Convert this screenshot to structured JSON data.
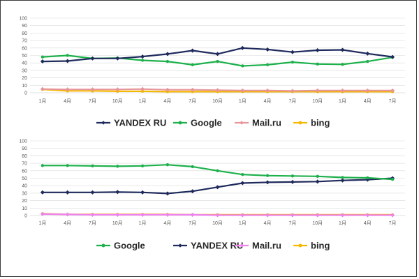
{
  "chart_data": [
    {
      "type": "line",
      "categories": [
        "1月",
        "4月",
        "7月",
        "10月",
        "1月",
        "4月",
        "7月",
        "10月",
        "1月",
        "4月",
        "7月",
        "10月",
        "1月",
        "4月",
        "7月"
      ],
      "ylim": [
        0,
        100
      ],
      "yticks": [
        "0",
        "10",
        "20",
        "30",
        "40",
        "50",
        "60",
        "70",
        "80",
        "90",
        "100"
      ],
      "grid": true,
      "legend_position": "bottom",
      "series": [
        {
          "name": "YANDEX RU",
          "color": "#1f2a5c",
          "marker": "diamond",
          "values": [
            42,
            42.5,
            46,
            46,
            48.5,
            52,
            56.5,
            52,
            60,
            58,
            54.5,
            57,
            57.5,
            52.5,
            48
          ]
        },
        {
          "name": "Google",
          "color": "#1db04b",
          "marker": "circle",
          "values": [
            48,
            50,
            46,
            46.5,
            43.5,
            42,
            37.5,
            42,
            36,
            37.5,
            41,
            38.5,
            38,
            42,
            47.5
          ]
        },
        {
          "name": "Mail.ru",
          "color": "#e6959b",
          "marker": "diamond",
          "values": [
            5,
            4.5,
            4.5,
            4.5,
            5,
            4,
            4,
            3.5,
            3,
            3,
            2.5,
            3,
            3,
            3,
            3
          ]
        },
        {
          "name": "bing",
          "color": "#f5b800",
          "marker": "circle",
          "values": [
            4.5,
            2.5,
            2.5,
            2,
            2,
            1.5,
            1.5,
            1.5,
            1.5,
            1.5,
            1.5,
            1.5,
            1.5,
            1.5,
            1.5
          ]
        }
      ]
    },
    {
      "type": "line",
      "categories": [
        "1月",
        "4月",
        "7月",
        "10月",
        "1月",
        "4月",
        "7月",
        "10月",
        "1月",
        "4月",
        "7月",
        "10月",
        "1月",
        "4月",
        "7月"
      ],
      "ylim": [
        0,
        100
      ],
      "yticks": [
        "0",
        "10",
        "20",
        "30",
        "40",
        "50",
        "60",
        "70",
        "80",
        "90",
        "100"
      ],
      "grid": true,
      "legend_position": "bottom",
      "series": [
        {
          "name": "Google",
          "color": "#1db04b",
          "marker": "circle",
          "values": [
            67,
            67,
            66.5,
            66,
            66.5,
            68,
            65.5,
            60,
            55,
            53.5,
            53,
            52.5,
            51,
            50.5,
            48.5
          ]
        },
        {
          "name": "YANDEX RU",
          "color": "#1f2a5c",
          "marker": "diamond",
          "values": [
            31,
            31,
            31,
            31.5,
            31,
            29.5,
            32.5,
            38,
            43.5,
            44.5,
            45,
            45.5,
            47,
            48,
            50
          ]
        },
        {
          "name": "Mail.ru",
          "color": "#ee82ee",
          "marker": "diamond",
          "values": [
            2,
            1.5,
            1,
            1,
            1,
            1,
            1,
            0.5,
            0.5,
            0.5,
            0.5,
            0.5,
            0.5,
            0.5,
            0.5
          ]
        },
        {
          "name": "bing",
          "color": "#f5b800",
          "marker": "circle",
          "values": [
            2.5,
            1.5,
            1.5,
            1.5,
            1.5,
            1.5,
            1,
            1,
            1,
            1,
            1,
            1,
            1,
            1,
            1
          ]
        }
      ]
    }
  ]
}
